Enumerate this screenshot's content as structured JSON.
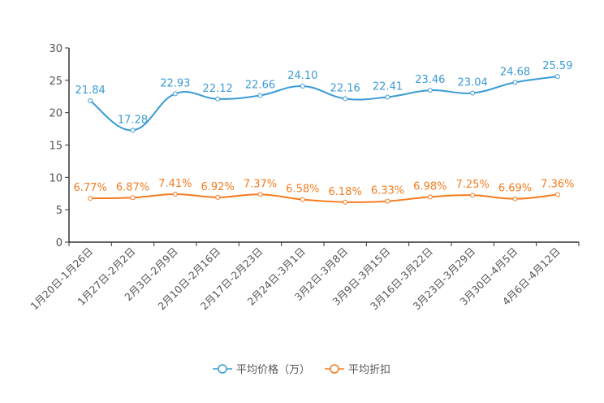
{
  "chart_data": {
    "type": "line",
    "categories": [
      "1月20日-1月26日",
      "1月27日-2月2日",
      "2月3日-2月9日",
      "2月10日-2月16日",
      "2月17日-2月23日",
      "2月24日-3月1日",
      "3月2日-3月8日",
      "3月9日-3月15日",
      "3月16日-3月22日",
      "3月23日-3月29日",
      "3月30日-4月5日",
      "4月6日-4月12日"
    ],
    "series": [
      {
        "name": "平均价格（万）",
        "color": "#3a9bd5",
        "values": [
          21.84,
          17.28,
          22.93,
          22.12,
          22.66,
          24.1,
          22.16,
          22.41,
          23.46,
          23.04,
          24.68,
          25.59
        ],
        "labels": [
          "21.84",
          "17.28",
          "22.93",
          "22.12",
          "22.66",
          "24.10",
          "22.16",
          "22.41",
          "23.46",
          "23.04",
          "24.68",
          "25.59"
        ]
      },
      {
        "name": "平均折扣",
        "color": "#f57c1f",
        "values": [
          6.77,
          6.87,
          7.41,
          6.92,
          7.37,
          6.58,
          6.18,
          6.33,
          6.98,
          7.25,
          6.69,
          7.36
        ],
        "labels": [
          "6.77%",
          "6.87%",
          "7.41%",
          "6.92%",
          "7.37%",
          "6.58%",
          "6.18%",
          "6.33%",
          "6.98%",
          "7.25%",
          "6.69%",
          "7.36%"
        ]
      }
    ],
    "ylim": [
      0,
      30
    ],
    "yticks": [
      "0",
      "5",
      "10",
      "15",
      "20",
      "25",
      "30"
    ],
    "legend": "bottom-center",
    "grid": false
  }
}
